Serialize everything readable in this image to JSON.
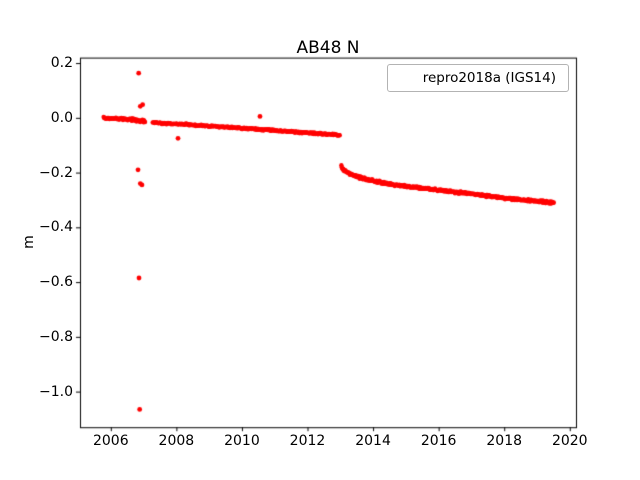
{
  "chart_data": {
    "type": "scatter",
    "title": "AB48 N",
    "xlabel": "",
    "ylabel": "m",
    "legend": {
      "position": "upper right",
      "entries": [
        {
          "label": "repro2018a (IGS14)",
          "marker": "dot",
          "color": "#ff0000"
        }
      ]
    },
    "grid": false,
    "marker_color": "#ff0000",
    "xlim": [
      2005.06,
      2020.19
    ],
    "ylim": [
      -1.13,
      0.22
    ],
    "xticks": [
      2006,
      2008,
      2010,
      2012,
      2014,
      2016,
      2018,
      2020
    ],
    "xtick_labels": [
      "2006",
      "2008",
      "2010",
      "2012",
      "2014",
      "2016",
      "2018",
      "2020"
    ],
    "yticks": [
      0.2,
      0.0,
      -0.2,
      -0.4,
      -0.6,
      -0.8,
      -1.0
    ],
    "ytick_labels": [
      "0.2",
      "0.0",
      "−0.2",
      "−0.4",
      "−0.6",
      "−0.8",
      "−1.0"
    ],
    "series": [
      {
        "name": "repro2018a (IGS14)",
        "description": "Dense daily GNSS north-position time series approximated by piecewise-linear trend segments with scatter, plus discrete outliers.",
        "trend_segments": [
          {
            "points": [
              [
                2005.78,
                0.0
              ],
              [
                2006.2,
                -0.003
              ],
              [
                2006.6,
                -0.006
              ],
              [
                2007.05,
                -0.012
              ]
            ],
            "step": 0.018,
            "jitter": 0.006
          },
          {
            "points": [
              [
                2007.28,
                -0.018
              ],
              [
                2008.0,
                -0.022
              ],
              [
                2009.0,
                -0.03
              ],
              [
                2010.0,
                -0.038
              ],
              [
                2011.0,
                -0.046
              ],
              [
                2012.0,
                -0.055
              ],
              [
                2013.0,
                -0.063
              ]
            ],
            "step": 0.018,
            "jitter": 0.0035
          },
          {
            "points": [
              [
                2013.03,
                -0.175
              ],
              [
                2013.1,
                -0.19
              ],
              [
                2013.3,
                -0.205
              ],
              [
                2013.6,
                -0.218
              ],
              [
                2014.0,
                -0.23
              ],
              [
                2014.5,
                -0.242
              ],
              [
                2015.0,
                -0.25
              ],
              [
                2015.5,
                -0.257
              ],
              [
                2016.0,
                -0.264
              ],
              [
                2016.5,
                -0.271
              ],
              [
                2017.0,
                -0.278
              ],
              [
                2017.5,
                -0.286
              ],
              [
                2018.0,
                -0.293
              ],
              [
                2018.5,
                -0.299
              ],
              [
                2019.0,
                -0.305
              ],
              [
                2019.52,
                -0.31
              ]
            ],
            "step": 0.014,
            "jitter": 0.005
          }
        ],
        "outliers": [
          [
            2006.85,
            0.163
          ],
          [
            2006.9,
            0.042
          ],
          [
            2006.97,
            0.048
          ],
          [
            2006.83,
            -0.19
          ],
          [
            2006.9,
            -0.24
          ],
          [
            2006.95,
            -0.245
          ],
          [
            2006.86,
            -0.585
          ],
          [
            2006.88,
            -1.065
          ],
          [
            2008.05,
            -0.075
          ],
          [
            2010.55,
            0.005
          ]
        ]
      }
    ]
  }
}
